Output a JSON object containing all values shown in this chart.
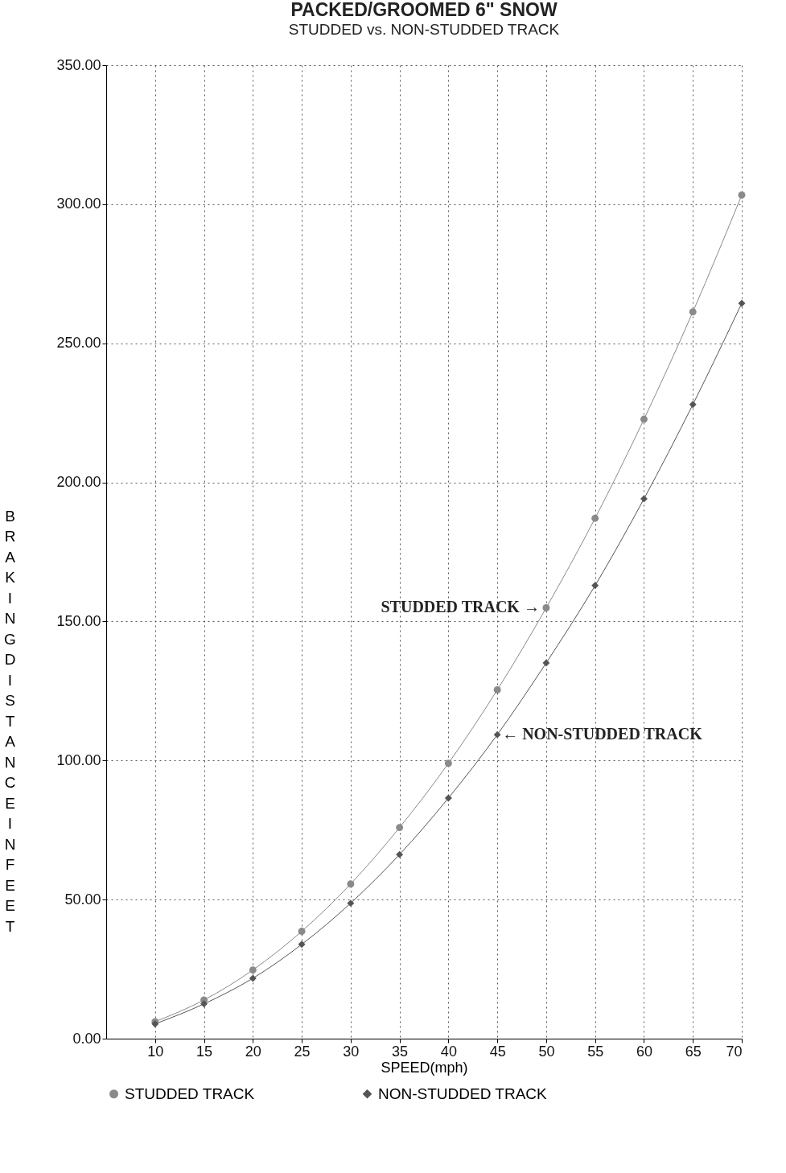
{
  "chart_data": {
    "type": "line",
    "title": "PACKED/GROOMED 6\" SNOW",
    "subtitle": "STUDDED vs. NON-STUDDED TRACK",
    "xlabel": "SPEED(mph)",
    "ylabel": "BRAKING DISTANCE IN FEET",
    "x": [
      10,
      15,
      20,
      25,
      30,
      35,
      40,
      45,
      50,
      55,
      60,
      65,
      70
    ],
    "series": [
      {
        "name": "STUDDED TRACK",
        "color": "#8a8a8a",
        "marker": "circle",
        "values": [
          6.1,
          13.9,
          24.7,
          38.6,
          55.6,
          75.9,
          99.0,
          125.4,
          154.9,
          187.1,
          222.7,
          261.3,
          303.3
        ]
      },
      {
        "name": "NON-STUDDED TRACK",
        "color": "#555555",
        "marker": "diamond",
        "values": [
          5.3,
          12.5,
          21.7,
          33.9,
          48.7,
          66.2,
          86.5,
          109.3,
          135.1,
          162.9,
          194.1,
          228.0,
          264.4
        ]
      }
    ],
    "xlim": [
      5,
      70
    ],
    "xticks": [
      10,
      15,
      20,
      25,
      30,
      35,
      40,
      45,
      50,
      55,
      60,
      65,
      70
    ],
    "ylim": [
      0,
      350
    ],
    "yticks": [
      {
        "value": 0,
        "label": "0.00"
      },
      {
        "value": 50,
        "label": "50.00"
      },
      {
        "value": 100,
        "label": "100.00"
      },
      {
        "value": 150,
        "label": "150.00"
      },
      {
        "value": 200,
        "label": "200.00"
      },
      {
        "value": 250,
        "label": "250.00"
      },
      {
        "value": 300,
        "label": "300.00"
      },
      {
        "value": 350,
        "label": "350.00"
      }
    ],
    "grid": true,
    "line_style": "solid",
    "legend": "bottom",
    "annotations": [
      {
        "text": "STUDDED TRACK  →",
        "x": 50,
        "y": 154.9
      },
      {
        "text": "← NON-STUDDED TRACK",
        "x": 45,
        "y": 109.3
      }
    ]
  }
}
